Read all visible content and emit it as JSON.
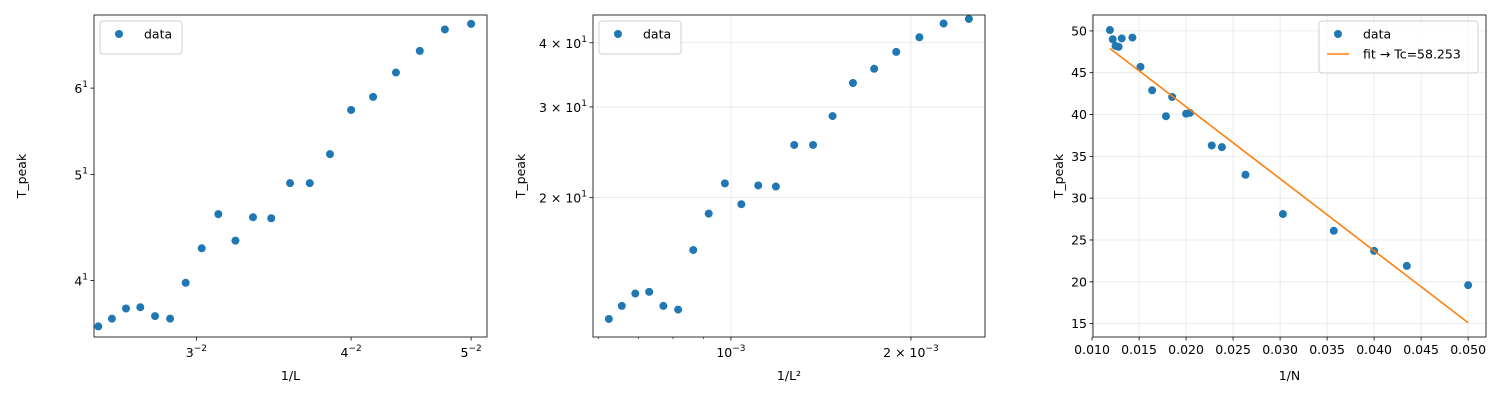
{
  "chart_data": [
    {
      "type": "scatter",
      "x_scale": "log",
      "y_scale": "log",
      "xlabel": "1/L",
      "ylabel": "T_peak",
      "xlim": [
        0.0248,
        0.0515
      ],
      "ylim": [
        35.5,
        70.0
      ],
      "grid": false,
      "legend_position": "upper-left",
      "x_ticks": [
        {
          "value": 0.03,
          "base": "3",
          "exp": "−2"
        },
        {
          "value": 0.04,
          "base": "4",
          "exp": "−2"
        },
        {
          "value": 0.05,
          "base": "5",
          "exp": "−2"
        }
      ],
      "y_ticks": [
        {
          "value": 40,
          "base": "4",
          "exp": "1"
        },
        {
          "value": 50,
          "base": "5",
          "exp": "1"
        },
        {
          "value": 60,
          "base": "6",
          "exp": "1"
        }
      ],
      "series": [
        {
          "name": "data",
          "kind": "scatter",
          "color": "#1f77b4",
          "points": [
            {
              "x": 0.025,
              "y": 36.3
            },
            {
              "x": 0.02564,
              "y": 36.9
            },
            {
              "x": 0.02632,
              "y": 37.7
            },
            {
              "x": 0.02703,
              "y": 37.8
            },
            {
              "x": 0.02778,
              "y": 37.1
            },
            {
              "x": 0.02857,
              "y": 36.9
            },
            {
              "x": 0.02941,
              "y": 39.8
            },
            {
              "x": 0.0303,
              "y": 42.8
            },
            {
              "x": 0.03125,
              "y": 46.0
            },
            {
              "x": 0.03226,
              "y": 43.5
            },
            {
              "x": 0.03333,
              "y": 45.7
            },
            {
              "x": 0.03448,
              "y": 45.6
            },
            {
              "x": 0.03571,
              "y": 49.1
            },
            {
              "x": 0.03704,
              "y": 49.1
            },
            {
              "x": 0.03846,
              "y": 52.2
            },
            {
              "x": 0.04,
              "y": 57.3
            },
            {
              "x": 0.04167,
              "y": 58.9
            },
            {
              "x": 0.04348,
              "y": 62.0
            },
            {
              "x": 0.04545,
              "y": 64.9
            },
            {
              "x": 0.04762,
              "y": 67.9
            },
            {
              "x": 0.05,
              "y": 68.7
            }
          ]
        }
      ]
    },
    {
      "type": "scatter",
      "x_scale": "log",
      "y_scale": "log",
      "xlabel": "1/L²",
      "ylabel": "T_peak",
      "xlim": [
        0.000588,
        0.00266
      ],
      "ylim": [
        10.7,
        45.3
      ],
      "grid": true,
      "legend_position": "upper-left",
      "x_ticks": [
        {
          "value": 0.001,
          "base": "10",
          "exp": "−3"
        },
        {
          "value": 0.002,
          "base": "2 × 10",
          "exp": "−3"
        }
      ],
      "y_ticks": [
        {
          "value": 20,
          "base": "2 × 10",
          "exp": "1"
        },
        {
          "value": 30,
          "base": "3 × 10",
          "exp": "1"
        },
        {
          "value": 40,
          "base": "4 × 10",
          "exp": "1"
        }
      ],
      "series": [
        {
          "name": "data",
          "kind": "scatter",
          "color": "#1f77b4",
          "points": [
            {
              "x": 0.000625,
              "y": 11.6
            },
            {
              "x": 0.000657,
              "y": 12.3
            },
            {
              "x": 0.000692,
              "y": 13.0
            },
            {
              "x": 0.00073,
              "y": 13.1
            },
            {
              "x": 0.000771,
              "y": 12.3
            },
            {
              "x": 0.000816,
              "y": 12.1
            },
            {
              "x": 0.000865,
              "y": 15.8
            },
            {
              "x": 0.000918,
              "y": 18.6
            },
            {
              "x": 0.000977,
              "y": 21.3
            },
            {
              "x": 0.001041,
              "y": 19.4
            },
            {
              "x": 0.001111,
              "y": 21.1
            },
            {
              "x": 0.001189,
              "y": 21.0
            },
            {
              "x": 0.001276,
              "y": 25.3
            },
            {
              "x": 0.001372,
              "y": 25.3
            },
            {
              "x": 0.001479,
              "y": 28.8
            },
            {
              "x": 0.0016,
              "y": 33.4
            },
            {
              "x": 0.001736,
              "y": 35.6
            },
            {
              "x": 0.00189,
              "y": 38.4
            },
            {
              "x": 0.002066,
              "y": 41.0
            },
            {
              "x": 0.002268,
              "y": 43.6
            },
            {
              "x": 0.0025,
              "y": 44.5
            }
          ]
        }
      ]
    },
    {
      "type": "scatter",
      "x_scale": "linear",
      "y_scale": "linear",
      "xlabel": "1/N",
      "ylabel": "T_peak",
      "xlim": [
        0.0101,
        0.0519
      ],
      "ylim": [
        13.4,
        51.9
      ],
      "grid": true,
      "legend_position": "upper-right",
      "x_ticks": [
        "0.010",
        "0.015",
        "0.020",
        "0.025",
        "0.030",
        "0.035",
        "0.040",
        "0.045",
        "0.050"
      ],
      "y_ticks": [
        "15",
        "20",
        "25",
        "30",
        "35",
        "40",
        "45",
        "50"
      ],
      "series": [
        {
          "name": "data",
          "kind": "scatter",
          "color": "#1f77b4",
          "points": [
            {
              "x": 0.0119,
              "y": 50.1
            },
            {
              "x": 0.0122,
              "y": 49.0
            },
            {
              "x": 0.0125,
              "y": 48.2
            },
            {
              "x": 0.01282,
              "y": 48.1
            },
            {
              "x": 0.01316,
              "y": 49.1
            },
            {
              "x": 0.01429,
              "y": 49.2
            },
            {
              "x": 0.01515,
              "y": 45.7
            },
            {
              "x": 0.01639,
              "y": 42.9
            },
            {
              "x": 0.01786,
              "y": 39.8
            },
            {
              "x": 0.01852,
              "y": 42.1
            },
            {
              "x": 0.02,
              "y": 40.1
            },
            {
              "x": 0.02041,
              "y": 40.2
            },
            {
              "x": 0.02273,
              "y": 36.3
            },
            {
              "x": 0.02381,
              "y": 36.1
            },
            {
              "x": 0.02632,
              "y": 32.8
            },
            {
              "x": 0.0303,
              "y": 28.1
            },
            {
              "x": 0.03571,
              "y": 26.1
            },
            {
              "x": 0.04,
              "y": 23.7
            },
            {
              "x": 0.04348,
              "y": 21.9
            },
            {
              "x": 0.05,
              "y": 19.6
            }
          ]
        },
        {
          "name": "fit → Tc=58.253",
          "kind": "line",
          "color": "#ff7f0e",
          "points": [
            {
              "x": 0.0119,
              "y": 47.9
            },
            {
              "x": 0.05,
              "y": 15.1
            }
          ]
        }
      ]
    }
  ]
}
